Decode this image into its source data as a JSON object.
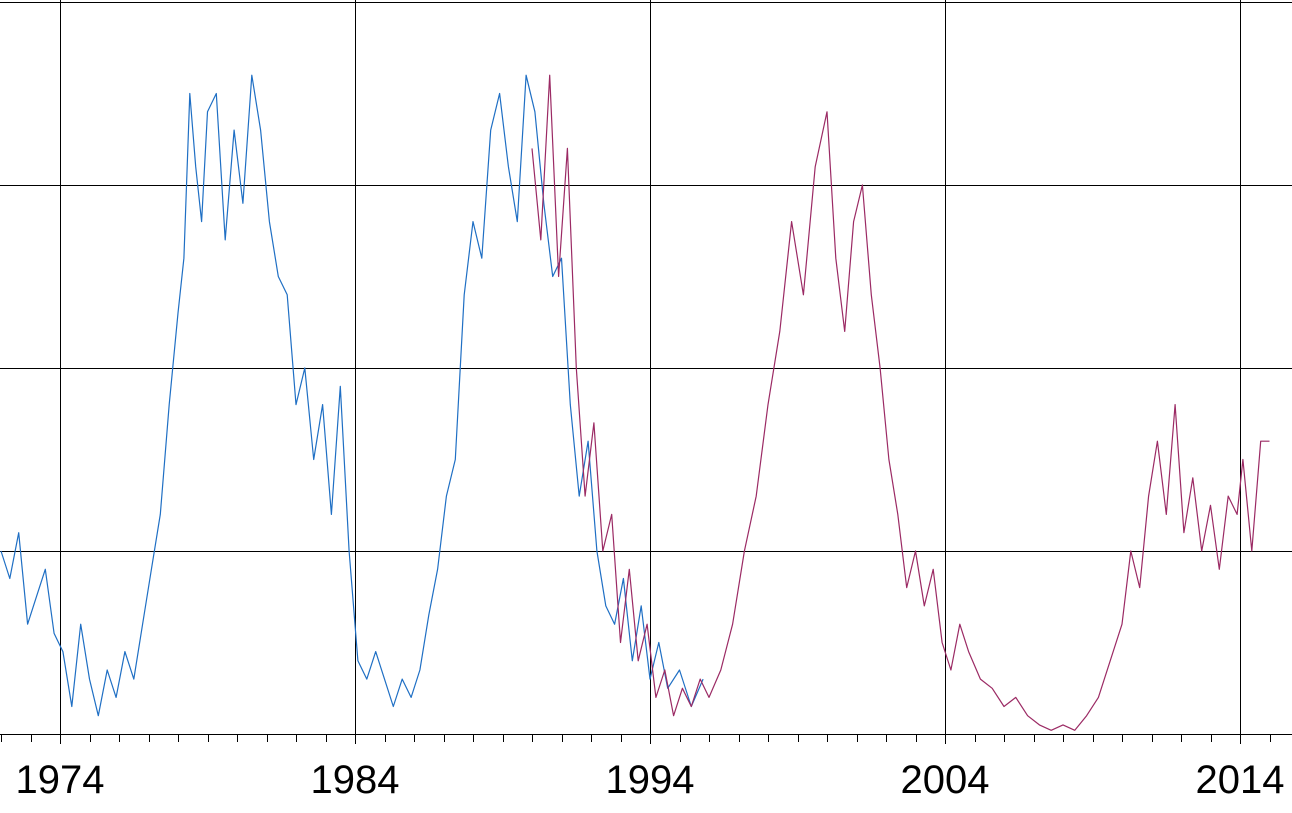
{
  "chart_data": {
    "type": "line",
    "title": "",
    "xlabel": "",
    "ylabel": "",
    "x_tick_labels": [
      "1974",
      "1984",
      "1994",
      "2004",
      "2014"
    ],
    "x_tick_values": [
      1974,
      1984,
      1994,
      2004,
      2014
    ],
    "xlim": [
      1972,
      2015.5
    ],
    "ylim": [
      0,
      4
    ],
    "y_gridlines": [
      1,
      2,
      3,
      4
    ],
    "y_tick_labels": [],
    "grid": true,
    "minor_ticks_per_year": true,
    "legend": "none",
    "series": [
      {
        "color": "#1f6fc4",
        "x": [
          1972.0,
          1972.3,
          1972.6,
          1972.9,
          1973.2,
          1973.5,
          1973.8,
          1974.1,
          1974.4,
          1974.7,
          1975.0,
          1975.3,
          1975.6,
          1975.9,
          1976.2,
          1976.5,
          1976.8,
          1977.1,
          1977.4,
          1977.7,
          1978.0,
          1978.2,
          1978.4,
          1978.6,
          1978.8,
          1979.0,
          1979.3,
          1979.6,
          1979.9,
          1980.2,
          1980.5,
          1980.8,
          1981.1,
          1981.4,
          1981.7,
          1982.0,
          1982.3,
          1982.6,
          1982.9,
          1983.2,
          1983.5,
          1983.8,
          1984.1,
          1984.4,
          1984.7,
          1985.0,
          1985.3,
          1985.6,
          1985.9,
          1986.2,
          1986.5,
          1986.8,
          1987.1,
          1987.4,
          1987.7,
          1988.0,
          1988.3,
          1988.6,
          1988.9,
          1989.2,
          1989.5,
          1989.8,
          1990.1,
          1990.4,
          1990.7,
          1991.0,
          1991.3,
          1991.6,
          1991.9,
          1992.2,
          1992.5,
          1992.8,
          1993.1,
          1993.4,
          1993.7,
          1994.0,
          1994.3,
          1994.6,
          1995.0,
          1995.4,
          1995.8
        ],
        "y": [
          1.0,
          0.85,
          1.1,
          0.6,
          0.75,
          0.9,
          0.55,
          0.45,
          0.15,
          0.6,
          0.3,
          0.1,
          0.35,
          0.2,
          0.45,
          0.3,
          0.6,
          0.9,
          1.2,
          1.8,
          2.3,
          2.6,
          3.5,
          3.1,
          2.8,
          3.4,
          3.5,
          2.7,
          3.3,
          2.9,
          3.6,
          3.3,
          2.8,
          2.5,
          2.4,
          1.8,
          2.0,
          1.5,
          1.8,
          1.2,
          1.9,
          1.0,
          0.4,
          0.3,
          0.45,
          0.3,
          0.15,
          0.3,
          0.2,
          0.35,
          0.65,
          0.9,
          1.3,
          1.5,
          2.4,
          2.8,
          2.6,
          3.3,
          3.5,
          3.1,
          2.8,
          3.6,
          3.4,
          2.9,
          2.5,
          2.6,
          1.8,
          1.3,
          1.6,
          1.0,
          0.7,
          0.6,
          0.85,
          0.4,
          0.7,
          0.3,
          0.5,
          0.25,
          0.35,
          0.15,
          0.3
        ]
      },
      {
        "color": "#9b2a64",
        "x": [
          1990.0,
          1990.3,
          1990.6,
          1990.9,
          1991.2,
          1991.5,
          1991.8,
          1992.1,
          1992.4,
          1992.7,
          1993.0,
          1993.3,
          1993.6,
          1993.9,
          1994.2,
          1994.5,
          1994.8,
          1995.1,
          1995.4,
          1995.7,
          1996.0,
          1996.4,
          1996.8,
          1997.2,
          1997.6,
          1998.0,
          1998.4,
          1998.8,
          1999.2,
          1999.6,
          2000.0,
          2000.3,
          2000.6,
          2000.9,
          2001.2,
          2001.5,
          2001.8,
          2002.1,
          2002.4,
          2002.7,
          2003.0,
          2003.3,
          2003.6,
          2003.9,
          2004.2,
          2004.5,
          2004.8,
          2005.2,
          2005.6,
          2006.0,
          2006.4,
          2006.8,
          2007.2,
          2007.6,
          2008.0,
          2008.4,
          2008.8,
          2009.2,
          2009.6,
          2010.0,
          2010.3,
          2010.6,
          2010.9,
          2011.2,
          2011.5,
          2011.8,
          2012.1,
          2012.4,
          2012.7,
          2013.0,
          2013.3,
          2013.6,
          2013.9,
          2014.1,
          2014.4,
          2014.7,
          2015.0
        ],
        "y": [
          3.2,
          2.7,
          3.6,
          2.5,
          3.2,
          2.0,
          1.3,
          1.7,
          1.0,
          1.2,
          0.5,
          0.9,
          0.4,
          0.6,
          0.2,
          0.35,
          0.1,
          0.25,
          0.15,
          0.3,
          0.2,
          0.35,
          0.6,
          1.0,
          1.3,
          1.8,
          2.2,
          2.8,
          2.4,
          3.1,
          3.4,
          2.6,
          2.2,
          2.8,
          3.0,
          2.4,
          2.0,
          1.5,
          1.2,
          0.8,
          1.0,
          0.7,
          0.9,
          0.5,
          0.35,
          0.6,
          0.45,
          0.3,
          0.25,
          0.15,
          0.2,
          0.1,
          0.05,
          0.02,
          0.05,
          0.02,
          0.1,
          0.2,
          0.4,
          0.6,
          1.0,
          0.8,
          1.3,
          1.6,
          1.2,
          1.8,
          1.1,
          1.4,
          1.0,
          1.25,
          0.9,
          1.3,
          1.2,
          1.5,
          1.0,
          1.6,
          1.6
        ]
      }
    ]
  }
}
